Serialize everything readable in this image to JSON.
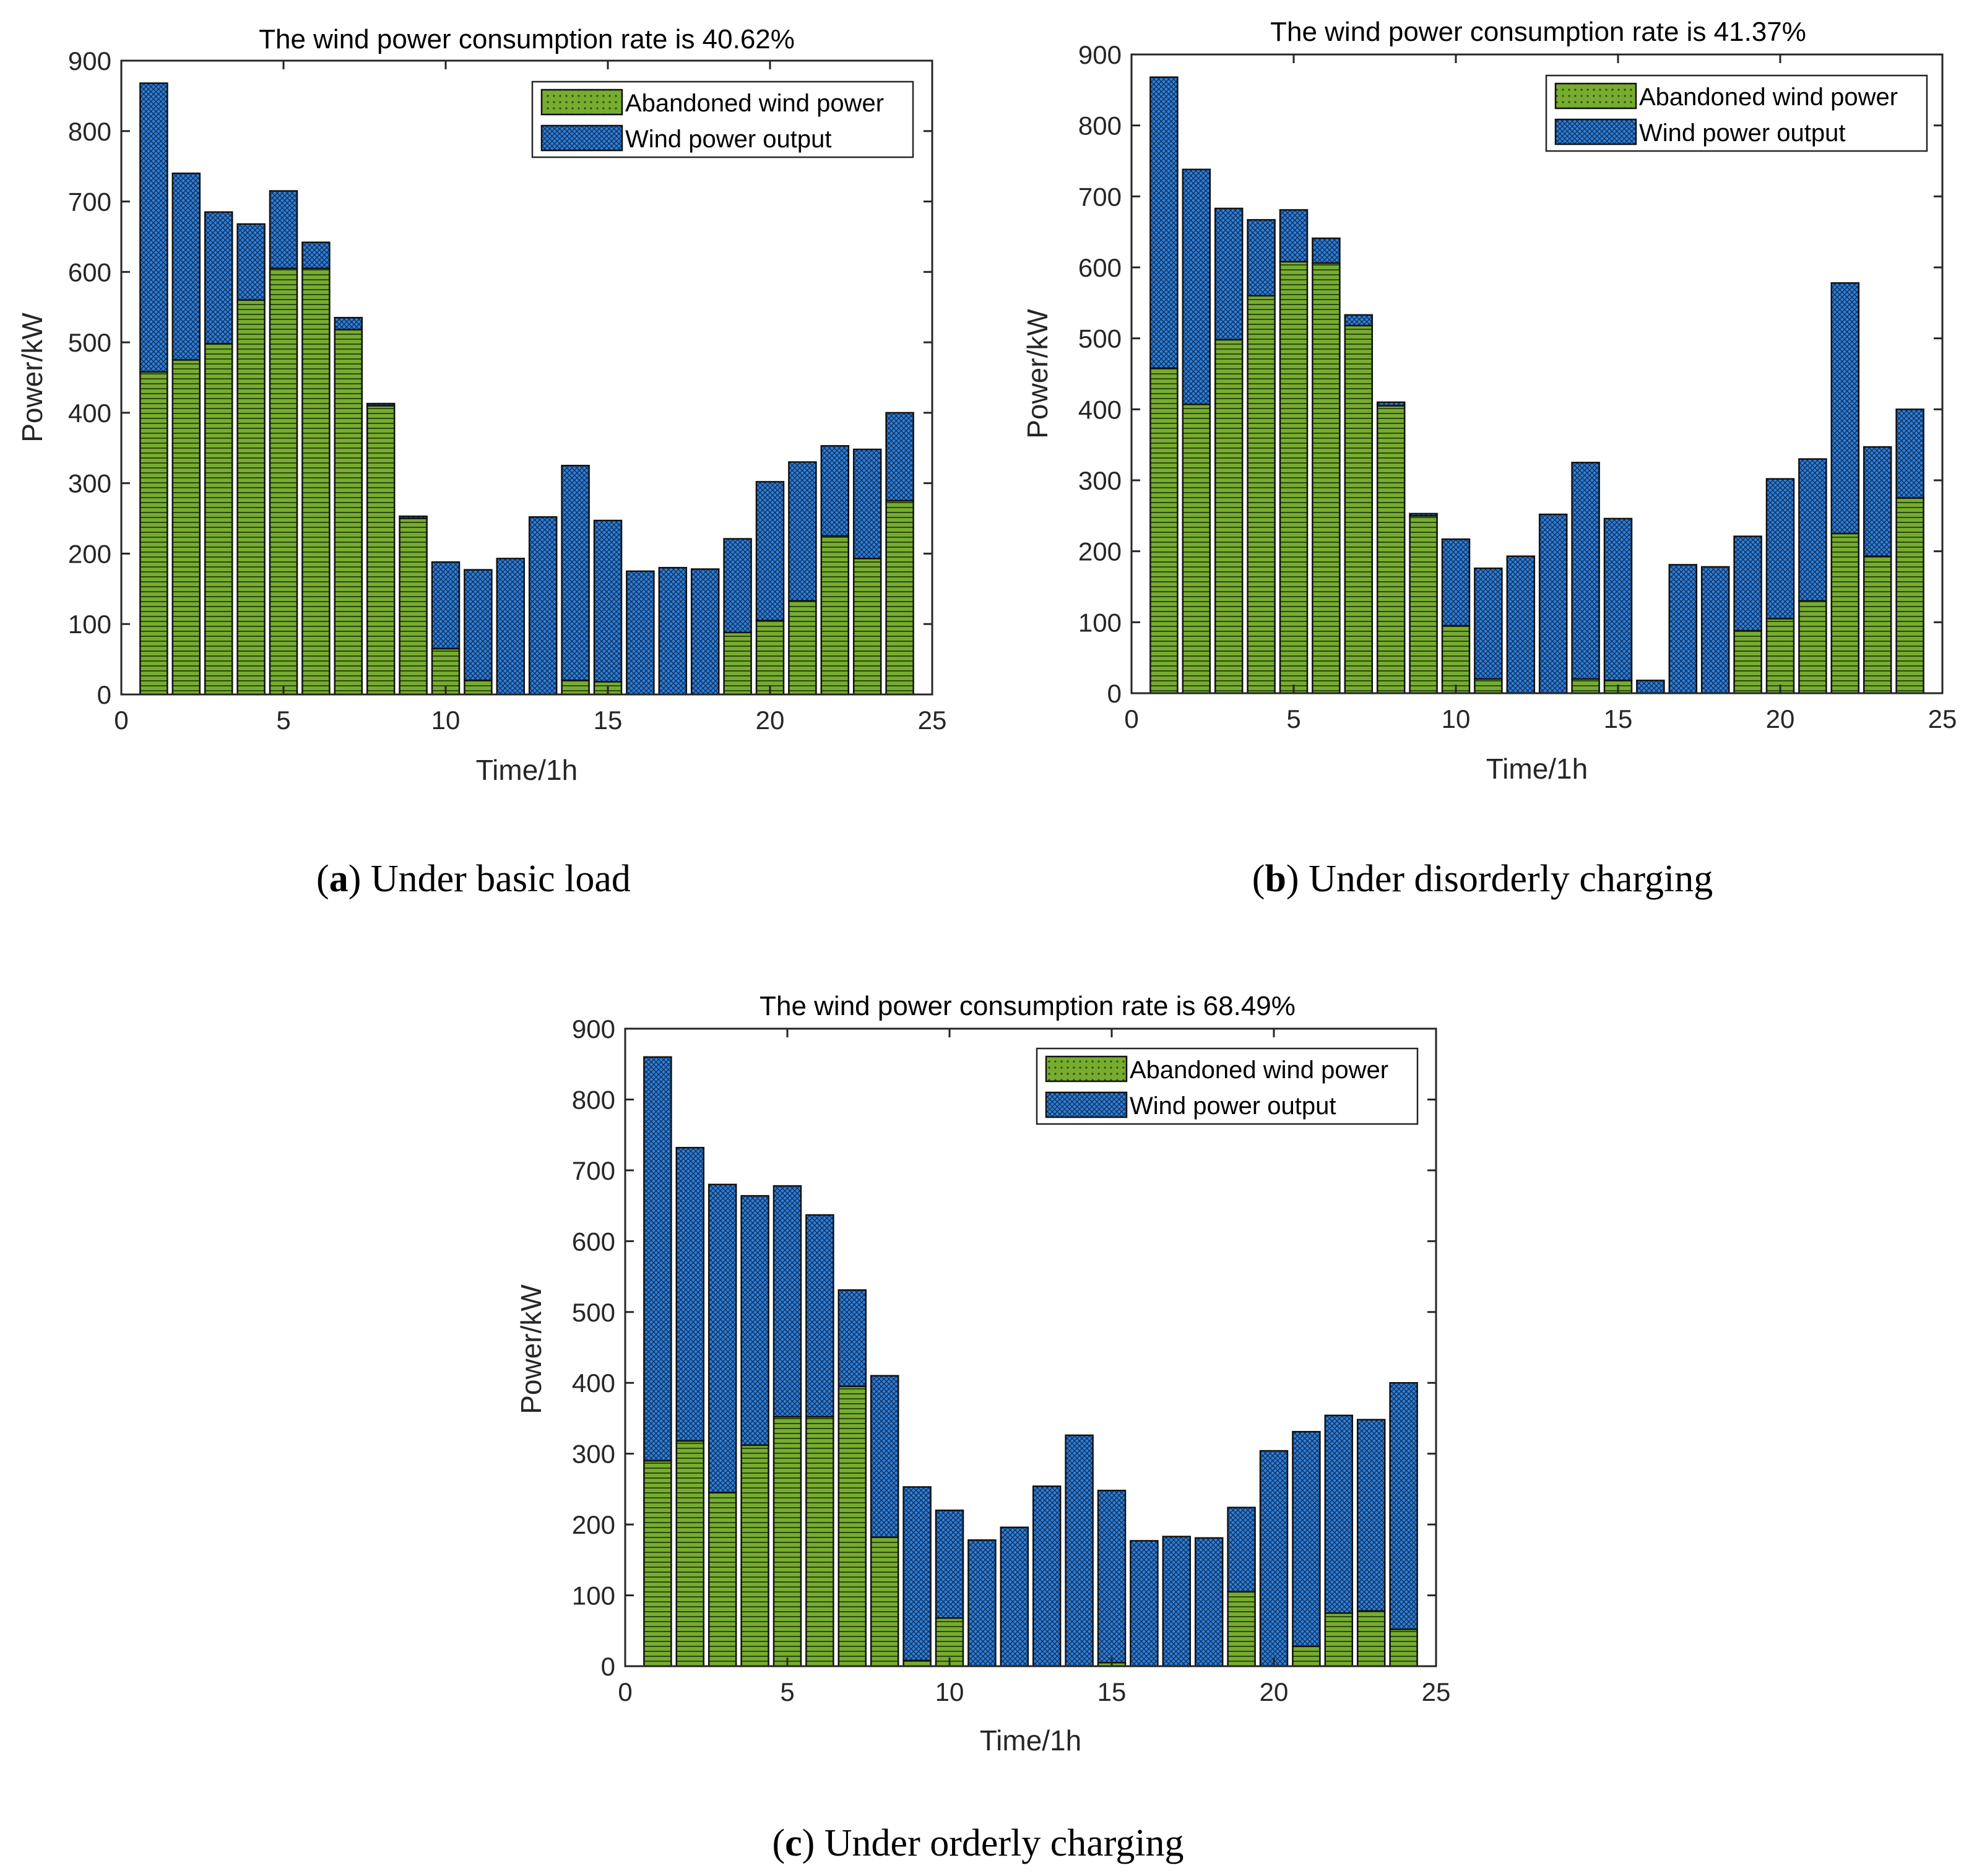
{
  "colors": {
    "abandoned": "#77ac30",
    "output": "#2f7fd6",
    "edge": "#111111"
  },
  "chart_data": [
    {
      "type": "bar",
      "stacked": true,
      "title": "The wind power consumption rate is 40.62%",
      "caption_letter": "a",
      "caption_text": "Under basic load",
      "xlabel": "Time/1h",
      "ylabel": "Power/kW",
      "xlim": [
        0,
        25
      ],
      "ylim": [
        0,
        900
      ],
      "xticks": [
        0,
        5,
        10,
        15,
        20,
        25
      ],
      "yticks": [
        0,
        100,
        200,
        300,
        400,
        500,
        600,
        700,
        800,
        900
      ],
      "legend": [
        "Abandoned wind power",
        "Wind power output"
      ],
      "legend_position": "top-right",
      "x": [
        1,
        2,
        3,
        4,
        5,
        6,
        7,
        8,
        9,
        10,
        11,
        12,
        13,
        14,
        15,
        16,
        17,
        18,
        19,
        20,
        21,
        22,
        23,
        24
      ],
      "total": [
        868,
        740,
        685,
        668,
        715,
        642,
        535,
        413,
        253,
        188,
        177,
        193,
        252,
        325,
        247,
        175,
        180,
        178,
        221,
        302,
        330,
        353,
        348,
        400
      ],
      "abandoned": [
        458,
        475,
        498,
        560,
        605,
        605,
        518,
        410,
        250,
        65,
        20,
        0,
        0,
        20,
        18,
        0,
        0,
        0,
        88,
        105,
        133,
        225,
        193,
        275
      ]
    },
    {
      "type": "bar",
      "stacked": true,
      "title": "The wind power consumption rate is 41.37%",
      "caption_letter": "b",
      "caption_text": "Under disorderly charging",
      "xlabel": "Time/1h",
      "ylabel": "Power/kW",
      "xlim": [
        0,
        25
      ],
      "ylim": [
        0,
        900
      ],
      "xticks": [
        0,
        5,
        10,
        15,
        20,
        25
      ],
      "yticks": [
        0,
        100,
        200,
        300,
        400,
        500,
        600,
        700,
        800,
        900
      ],
      "legend": [
        "Abandoned wind power",
        "Wind power output"
      ],
      "legend_position": "top-right",
      "x": [
        1,
        2,
        3,
        4,
        5,
        6,
        7,
        8,
        9,
        10,
        11,
        12,
        13,
        14,
        15,
        16,
        17,
        18,
        19,
        20,
        21,
        22,
        23,
        24
      ],
      "total": [
        868,
        738,
        683,
        667,
        681,
        641,
        533,
        410,
        253,
        217,
        176,
        193,
        252,
        325,
        246,
        18,
        181,
        178,
        221,
        302,
        330,
        578,
        347,
        400
      ],
      "abandoned": [
        458,
        407,
        498,
        560,
        608,
        606,
        518,
        405,
        250,
        95,
        20,
        0,
        0,
        20,
        18,
        0,
        0,
        0,
        88,
        105,
        130,
        225,
        193,
        275
      ]
    },
    {
      "type": "bar",
      "stacked": true,
      "title": "The wind power consumption rate is 68.49%",
      "caption_letter": "c",
      "caption_text": "Under orderly charging",
      "xlabel": "Time/1h",
      "ylabel": "Power/kW",
      "xlim": [
        0,
        25
      ],
      "ylim": [
        0,
        900
      ],
      "xticks": [
        0,
        5,
        10,
        15,
        20,
        25
      ],
      "yticks": [
        0,
        100,
        200,
        300,
        400,
        500,
        600,
        700,
        800,
        900
      ],
      "legend": [
        "Abandoned wind power",
        "Wind power output"
      ],
      "legend_position": "top-right",
      "x": [
        1,
        2,
        3,
        4,
        5,
        6,
        7,
        8,
        9,
        10,
        11,
        12,
        13,
        14,
        15,
        16,
        17,
        18,
        19,
        20,
        21,
        22,
        23,
        24
      ],
      "total": [
        860,
        732,
        680,
        664,
        678,
        637,
        531,
        410,
        253,
        220,
        178,
        196,
        254,
        326,
        248,
        177,
        183,
        181,
        224,
        304,
        331,
        354,
        348,
        400
      ],
      "abandoned": [
        290,
        318,
        245,
        312,
        352,
        352,
        395,
        182,
        8,
        68,
        0,
        0,
        0,
        0,
        5,
        0,
        0,
        0,
        105,
        0,
        28,
        75,
        78,
        52
      ]
    }
  ]
}
